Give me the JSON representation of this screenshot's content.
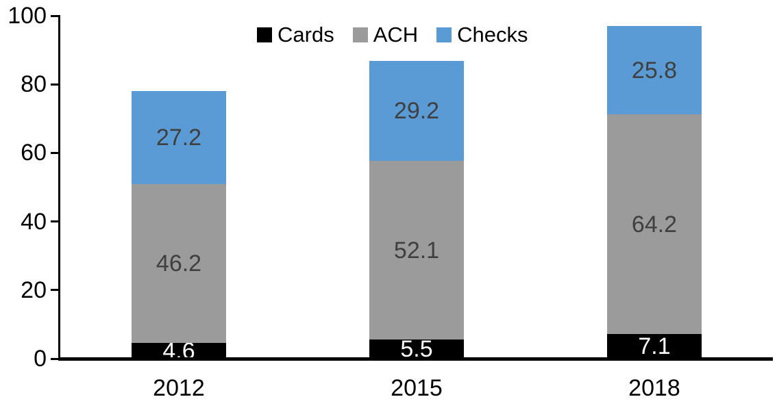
{
  "chart_data": {
    "type": "bar",
    "stacked": true,
    "title": "",
    "xlabel": "",
    "ylabel": "",
    "categories": [
      "2012",
      "2015",
      "2018"
    ],
    "series": [
      {
        "name": "Cards",
        "values": [
          4.6,
          5.5,
          7.1
        ],
        "color": "#000000",
        "label_color": "#FFFFFF"
      },
      {
        "name": "ACH",
        "values": [
          46.2,
          52.1,
          64.2
        ],
        "color": "#9B9B9B",
        "label_color": "#3F3F3F"
      },
      {
        "name": "Checks",
        "values": [
          27.2,
          29.2,
          25.8
        ],
        "color": "#5B9BD5",
        "label_color": "#3F3F3F"
      }
    ],
    "totals": [
      78.0,
      86.8,
      97.1
    ],
    "yticks": [
      0,
      20,
      40,
      60,
      80,
      100
    ],
    "ylim": [
      0,
      100
    ],
    "grid": false,
    "legend_position": "top-center",
    "axis_color": "#000000"
  }
}
